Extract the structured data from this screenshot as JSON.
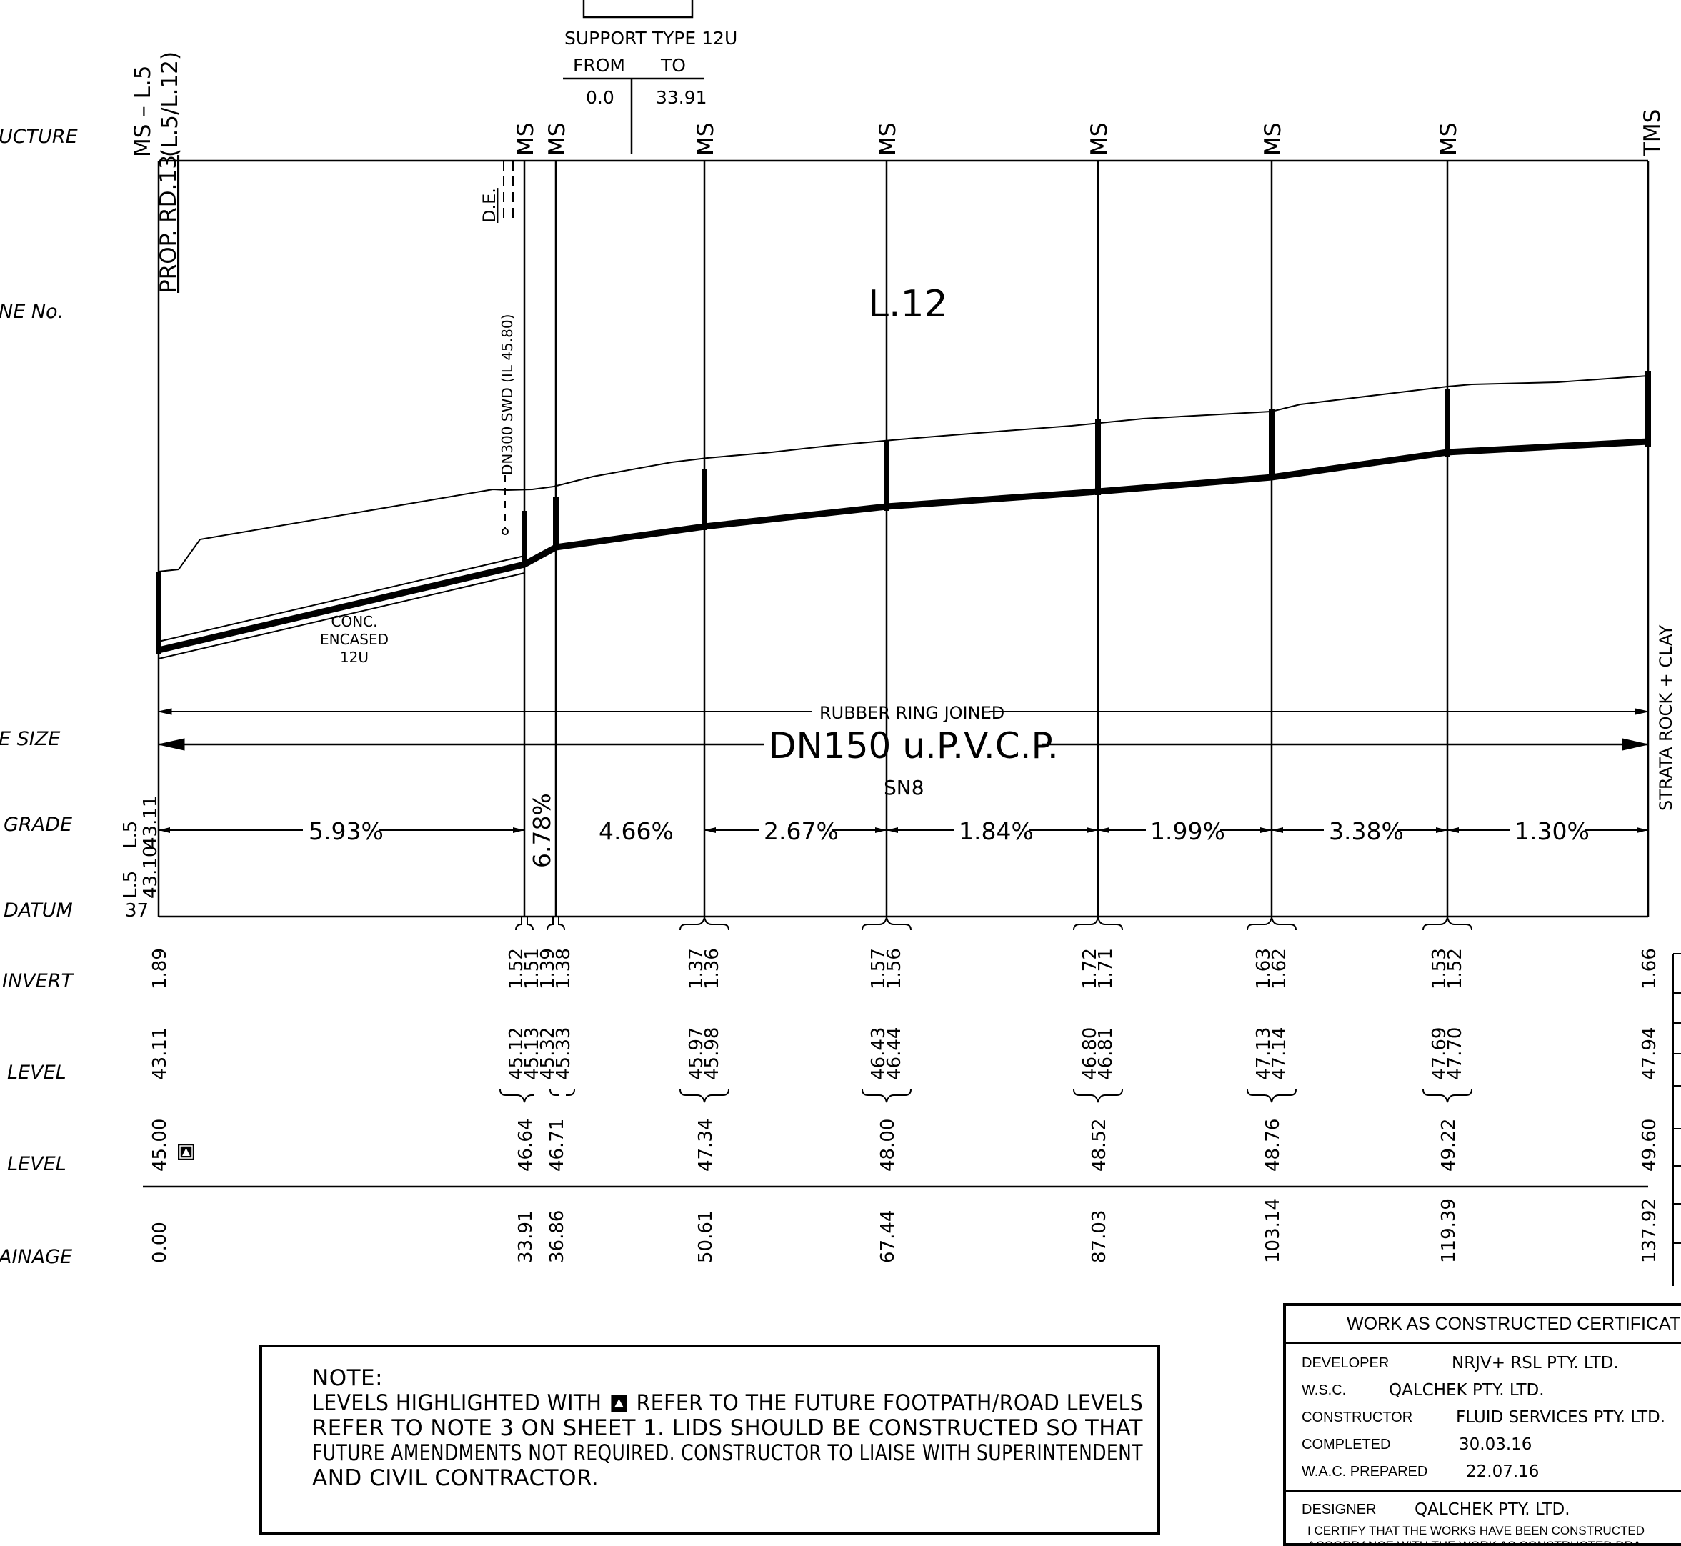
{
  "support_box": {
    "title": "SUPPORT TYPE  12U",
    "from_label": "FROM",
    "to_label": "TO",
    "from_value": "0.0",
    "to_value": "33.91"
  },
  "left_labels": {
    "structure": "UCTURE",
    "line_no": "NE No.",
    "pipe_size": "E SIZE",
    "grade": "GRADE",
    "datum": "DATUM",
    "invert": "INVERT",
    "level1": "LEVEL",
    "level2": "LEVEL",
    "chainage": "AINAGE"
  },
  "start_label": {
    "line1": "MS – L.5",
    "line2": "(L.5/L.12)",
    "prop_road": "PROP. RD.13"
  },
  "line_number": "L.12",
  "de_label": "D.E.",
  "swd_label": "DN300 SWD (IL 45.80)",
  "conc_note": [
    "CONC.",
    "ENCASED",
    "12U"
  ],
  "pipe": {
    "joint": "RUBBER RING JOINED",
    "size": "DN150 u.P.V.C.P.",
    "class": "SN8",
    "strata": "STRATA ROCK + CLAY"
  },
  "left_grade_labels": {
    "upper_label": "L.5",
    "upper_value": "43.11",
    "lower_label": "L.5",
    "lower_value": "43.10",
    "datum_value": "37"
  },
  "structures": [
    {
      "label": "MS",
      "chainage": "33.91",
      "level": "46.64",
      "invert": [
        "1.52",
        "1.51"
      ],
      "surface": [
        "45.12",
        "45.13"
      ]
    },
    {
      "label": "MS",
      "chainage": "36.86",
      "level": "46.71",
      "invert": [
        "1.39",
        "1.38"
      ],
      "surface": [
        "45.32",
        "45.33"
      ]
    },
    {
      "label": "MS",
      "chainage": "50.61",
      "level": "47.34",
      "invert": [
        "1.37",
        "1.36"
      ],
      "surface": [
        "45.97",
        "45.98"
      ]
    },
    {
      "label": "MS",
      "chainage": "67.44",
      "level": "48.00",
      "invert": [
        "1.57",
        "1.56"
      ],
      "surface": [
        "46.43",
        "46.44"
      ]
    },
    {
      "label": "MS",
      "chainage": "87.03",
      "level": "48.52",
      "invert": [
        "1.72",
        "1.71"
      ],
      "surface": [
        "46.80",
        "46.81"
      ]
    },
    {
      "label": "MS",
      "chainage": "103.14",
      "level": "48.76",
      "invert": [
        "1.63",
        "1.62"
      ],
      "surface": [
        "47.13",
        "47.14"
      ]
    },
    {
      "label": "MS",
      "chainage": "119.39",
      "level": "49.22",
      "invert": [
        "1.53",
        "1.52"
      ],
      "surface": [
        "47.69",
        "47.70"
      ]
    },
    {
      "label": "TMS",
      "chainage": "137.92",
      "level": "49.60",
      "invert": [
        "1.66"
      ],
      "surface": [
        "47.94"
      ]
    }
  ],
  "start_values": {
    "chainage": "0.00",
    "level": "45.00",
    "invert": "1.89",
    "surface": "43.11"
  },
  "grades": [
    "5.93%",
    "6.78%",
    "4.66%",
    "2.67%",
    "1.84%",
    "1.99%",
    "3.38%",
    "1.30%"
  ],
  "note": {
    "title": "NOTE:",
    "line1_a": "LEVELS HIGHLIGHTED WITH",
    "line1_b": "REFER TO THE FUTURE FOOTPATH/ROAD LEVELS",
    "line2": "REFER TO NOTE 3 ON SHEET 1. LIDS SHOULD BE CONSTRUCTED SO THAT",
    "line3": "FUTURE AMENDMENTS NOT REQUIRED. CONSTRUCTOR TO LIAISE WITH SUPERINTENDENT",
    "line4": "AND CIVIL CONTRACTOR."
  },
  "wac": {
    "title": "WORK AS CONSTRUCTED CERTIFICATIO",
    "developer_label": "DEVELOPER",
    "developer": "NRJV+ RSL PTY. LTD.",
    "wsc_label": "W.S.C.",
    "wsc": "QALCHEK PTY. LTD.",
    "constructor_label": "CONSTRUCTOR",
    "constructor": "FLUID SERVICES PTY. LTD.",
    "completed_label": "COMPLETED",
    "completed": "30.03.16",
    "prepared_label": "W.A.C. PREPARED",
    "prepared": "22.07.16",
    "designer_label": "DESIGNER",
    "designer": "QALCHEK PTY. LTD.",
    "cert1": "I CERTIFY THAT THE WORKS HAVE BEEN CONSTRUCTED",
    "cert2": "ACCORDANCE WITH THE WORK AS CONSTRUCTED DRA"
  }
}
